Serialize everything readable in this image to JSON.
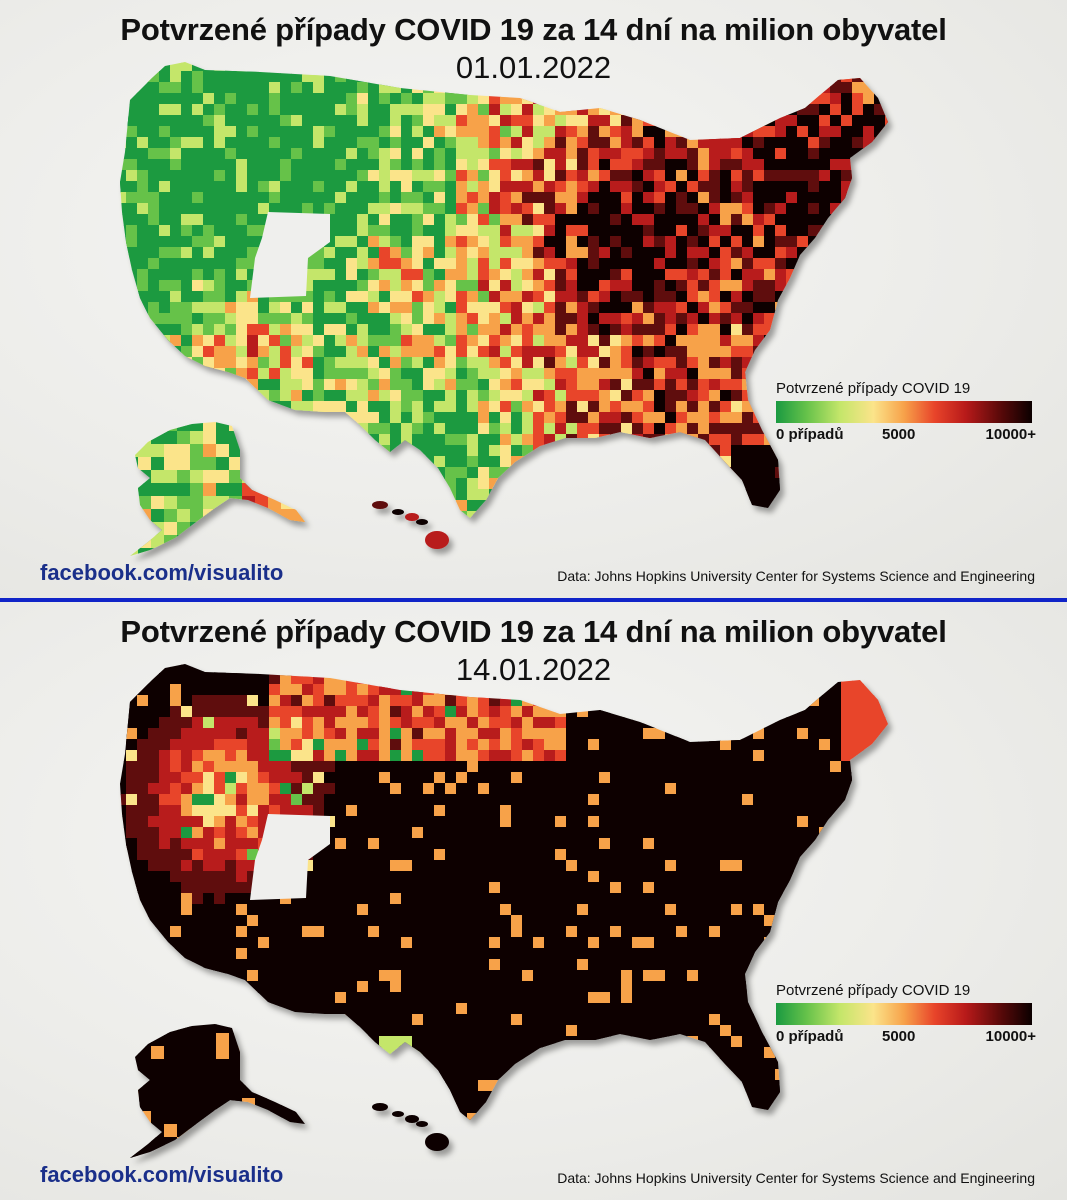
{
  "colors": {
    "divider": "#1024c8",
    "scale": [
      "#1a9a41",
      "#66c24a",
      "#c4e66a",
      "#fbe48a",
      "#f7a24a",
      "#e8442a",
      "#b81a1a",
      "#5e0a0a",
      "#0b0000"
    ]
  },
  "panels": [
    {
      "title": "Potvrzené případy COVID 19 za 14 dní na milion obyvatel",
      "date": "01.01.2022",
      "legend": {
        "title": "Potvrzené případy COVID 19",
        "tick_min": "0 případů",
        "tick_mid": "5000",
        "tick_max": "10000+"
      },
      "facebook": "facebook.com/visualito",
      "source": "Data: Johns Hopkins University Center for Systems Science and Engineering"
    },
    {
      "title": "Potvrzené případy COVID 19 za 14 dní na milion obyvatel",
      "date": "14.01.2022",
      "legend": {
        "title": "Potvrzené případy COVID 19",
        "tick_min": "0 případů",
        "tick_mid": "5000",
        "tick_max": "10000+"
      },
      "facebook": "facebook.com/visualito",
      "source": "Data: Johns Hopkins University Center for Systems Science and Engineering"
    }
  ]
}
